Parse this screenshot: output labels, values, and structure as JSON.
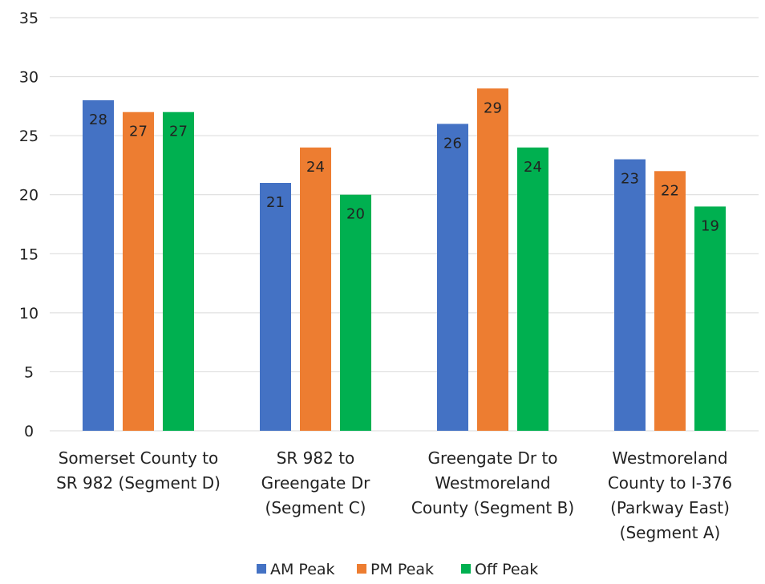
{
  "chart_data": {
    "type": "bar",
    "categories": [
      [
        "Somerset County to",
        "SR 982 (Segment D)"
      ],
      [
        "SR 982 to",
        "Greengate Dr",
        "(Segment C)"
      ],
      [
        "Greengate Dr to",
        "Westmoreland",
        "County (Segment B)"
      ],
      [
        "Westmoreland",
        "County to I-376",
        "(Parkway East)",
        "(Segment A)"
      ]
    ],
    "series": [
      {
        "name": "AM Peak",
        "color": "#4472C4",
        "values": [
          28,
          21,
          26,
          23
        ]
      },
      {
        "name": "PM Peak",
        "color": "#ED7D31",
        "values": [
          27,
          24,
          29,
          22
        ]
      },
      {
        "name": "Off Peak",
        "color": "#00B050",
        "values": [
          27,
          20,
          24,
          19
        ]
      }
    ],
    "ylim": [
      0,
      35
    ],
    "yticks": [
      0,
      5,
      10,
      15,
      20,
      25,
      30,
      35
    ],
    "grid": true,
    "legend_position": "bottom",
    "title": "",
    "xlabel": "",
    "ylabel": ""
  }
}
